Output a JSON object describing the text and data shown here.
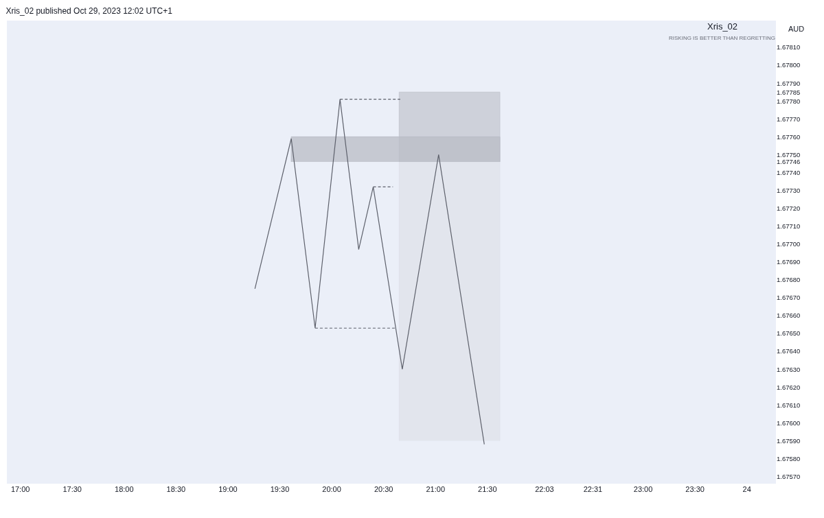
{
  "chart_data": {
    "type": "line",
    "title": "Xris_02 published Oct 29, 2023 12:02 UTC+1",
    "xlim": [
      16.87,
      24.28
    ],
    "xticks": [
      {
        "value": 17,
        "label": "17:00"
      },
      {
        "value": 17.5,
        "label": "17:30"
      },
      {
        "value": 18,
        "label": "18:00"
      },
      {
        "value": 18.5,
        "label": "18:30"
      },
      {
        "value": 19,
        "label": "19:00"
      },
      {
        "value": 19.5,
        "label": "19:30"
      },
      {
        "value": 20,
        "label": "20:00"
      },
      {
        "value": 20.5,
        "label": "20:30"
      },
      {
        "value": 21,
        "label": "21:00"
      },
      {
        "value": 21.5,
        "label": "21:30"
      },
      {
        "value": 22.05,
        "label": "22:03"
      },
      {
        "value": 22.5167,
        "label": "22:31"
      },
      {
        "value": 23,
        "label": "23:00"
      },
      {
        "value": 23.5,
        "label": "23:30"
      },
      {
        "value": 24,
        "label": "24"
      }
    ],
    "ylim": [
      1.67566,
      1.67825
    ],
    "yticks": [
      {
        "value": 1.6757,
        "label": "1.67570"
      },
      {
        "value": 1.6758,
        "label": "1.67580"
      },
      {
        "value": 1.6759,
        "label": "1.67590"
      },
      {
        "value": 1.676,
        "label": "1.67600"
      },
      {
        "value": 1.6761,
        "label": "1.67610"
      },
      {
        "value": 1.6762,
        "label": "1.67620"
      },
      {
        "value": 1.6763,
        "label": "1.67630"
      },
      {
        "value": 1.6764,
        "label": "1.67640"
      },
      {
        "value": 1.6765,
        "label": "1.67650"
      },
      {
        "value": 1.6766,
        "label": "1.67660"
      },
      {
        "value": 1.6767,
        "label": "1.67670"
      },
      {
        "value": 1.6768,
        "label": "1.67680"
      },
      {
        "value": 1.6769,
        "label": "1.67690"
      },
      {
        "value": 1.677,
        "label": "1.67700"
      },
      {
        "value": 1.6771,
        "label": "1.67710"
      },
      {
        "value": 1.6772,
        "label": "1.67720"
      },
      {
        "value": 1.6773,
        "label": "1.67730"
      },
      {
        "value": 1.6774,
        "label": "1.67740"
      },
      {
        "value": 1.67746,
        "label": "1.67746"
      },
      {
        "value": 1.6775,
        "label": "1.67750"
      },
      {
        "value": 1.6776,
        "label": "1.67760"
      },
      {
        "value": 1.6777,
        "label": "1.67770"
      },
      {
        "value": 1.6778,
        "label": "1.67780"
      },
      {
        "value": 1.67785,
        "label": "1.67785"
      },
      {
        "value": 1.6779,
        "label": "1.67790"
      },
      {
        "value": 1.678,
        "label": "1.67800"
      },
      {
        "value": 1.6781,
        "label": "1.67810"
      }
    ],
    "grid": false,
    "marker": "none",
    "series": [
      {
        "type": "area",
        "color": "#dfe1ea",
        "x": [
          20.65,
          20.65,
          21.62,
          21.62
        ],
        "values": [
          1.6759,
          1.67746,
          1.67746,
          1.6759
        ]
      },
      {
        "type": "area",
        "color": "#c4c7d0",
        "x": [
          20.65,
          20.65,
          21.62,
          21.62
        ],
        "values": [
          1.67746,
          1.67785,
          1.67785,
          1.67746
        ]
      },
      {
        "type": "area",
        "color": "#b9bcc6",
        "x": [
          19.61,
          19.61,
          21.62,
          21.62
        ],
        "values": [
          1.67746,
          1.6776,
          1.6776,
          1.67746
        ]
      },
      {
        "line_style": "dashed",
        "color": "#5d606b",
        "x": [
          20.08,
          20.66
        ],
        "values": [
          1.67781,
          1.67781
        ]
      },
      {
        "line_style": "dashed",
        "color": "#5d606b",
        "x": [
          20.4,
          20.59
        ],
        "values": [
          1.67732,
          1.67732
        ]
      },
      {
        "line_style": "dashed",
        "color": "#5d606b",
        "x": [
          19.84,
          20.61
        ],
        "values": [
          1.67653,
          1.67653
        ]
      },
      {
        "line_style": "solid",
        "color": "#5d606b",
        "x": [
          19.26,
          19.61,
          19.84,
          20.08,
          20.26,
          20.4,
          20.68,
          21.03,
          21.47
        ],
        "values": [
          1.67675,
          1.67759,
          1.67653,
          1.67781,
          1.67697,
          1.67732,
          1.6763,
          1.6775,
          1.67588
        ]
      }
    ],
    "annotations": [
      "AUD",
      "Xris_02",
      "RISKING IS BETTER THAN REGRETTING"
    ]
  }
}
